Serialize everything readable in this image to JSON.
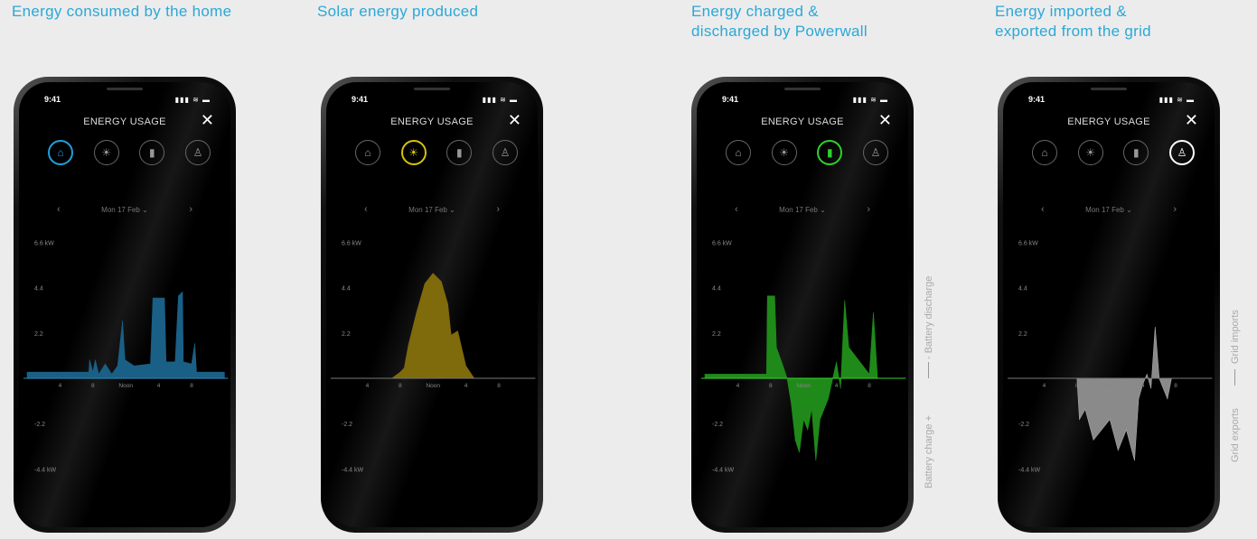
{
  "captions": [
    "Energy consumed by the home",
    "Solar energy produced",
    "Energy charged &\ndischarged by Powerwall",
    "Energy imported &\nexported from the grid"
  ],
  "app": {
    "time": "9:41",
    "title": "ENERGY USAGE",
    "date": "Mon 17 Feb",
    "icons": [
      "home-icon",
      "solar-icon",
      "powerwall-icon",
      "grid-icon"
    ]
  },
  "axis": {
    "y_ticks": [
      "6.6 kW",
      "4.4",
      "2.2",
      "-2.2",
      "-4.4 kW"
    ],
    "x_ticks": [
      "4",
      "8",
      "Noon",
      "4",
      "8"
    ]
  },
  "side_labels": {
    "powerwall_top": "- Battery discharge",
    "powerwall_bottom": "Battery charge +",
    "grid_top": "Grid imports",
    "grid_bottom": "Grid exports"
  },
  "colors": {
    "home": "#1a5f86",
    "solar": "#7f6a0c",
    "powerwall": "#1f8a1a",
    "grid": "#8a8a8a",
    "caption": "#2ba8d6"
  },
  "chart_data": [
    {
      "type": "area",
      "name": "home",
      "active_icon": 0,
      "ylim": [
        -5.5,
        6.6
      ],
      "x_unit": "hour",
      "points": [
        [
          0,
          0.3
        ],
        [
          7.5,
          0.3
        ],
        [
          7.6,
          0.9
        ],
        [
          8,
          0.3
        ],
        [
          8.3,
          0.9
        ],
        [
          8.7,
          0.2
        ],
        [
          9.5,
          0.7
        ],
        [
          10.3,
          0.2
        ],
        [
          11,
          0.6
        ],
        [
          11.6,
          2.8
        ],
        [
          11.9,
          0.9
        ],
        [
          13,
          0.6
        ],
        [
          15,
          0.7
        ],
        [
          15.3,
          3.9
        ],
        [
          16.7,
          3.9
        ],
        [
          16.9,
          0.8
        ],
        [
          18,
          0.8
        ],
        [
          18.4,
          4.0
        ],
        [
          18.9,
          4.2
        ],
        [
          19,
          0.8
        ],
        [
          20,
          0.7
        ],
        [
          20.4,
          1.7
        ],
        [
          20.6,
          0.3
        ],
        [
          24,
          0.3
        ]
      ]
    },
    {
      "type": "area",
      "name": "solar",
      "active_icon": 1,
      "ylim": [
        -5.5,
        6.6
      ],
      "x_unit": "hour",
      "points": [
        [
          7,
          0
        ],
        [
          8,
          0.3
        ],
        [
          8.5,
          0.5
        ],
        [
          9,
          1.6
        ],
        [
          10,
          3.2
        ],
        [
          11,
          4.6
        ],
        [
          12,
          5.1
        ],
        [
          13,
          4.7
        ],
        [
          13.8,
          3.6
        ],
        [
          14.2,
          2.1
        ],
        [
          15,
          2.3
        ],
        [
          16,
          0.6
        ],
        [
          17,
          0
        ]
      ]
    },
    {
      "type": "area",
      "name": "powerwall",
      "active_icon": 2,
      "ylim": [
        -5.5,
        6.6
      ],
      "x_unit": "hour",
      "points": [
        [
          0,
          0.2
        ],
        [
          7.5,
          0.2
        ],
        [
          7.6,
          4.0
        ],
        [
          8.5,
          4.0
        ],
        [
          8.7,
          1.5
        ],
        [
          9.5,
          0.6
        ],
        [
          10,
          0
        ],
        [
          10.5,
          -1.2
        ],
        [
          11,
          -3
        ],
        [
          11.5,
          -3.6
        ],
        [
          12,
          -2
        ],
        [
          12.5,
          -2.5
        ],
        [
          13,
          -1.5
        ],
        [
          13.5,
          -4
        ],
        [
          14,
          -2
        ],
        [
          15,
          -1
        ],
        [
          16,
          0.8
        ],
        [
          16.5,
          -0.5
        ],
        [
          17,
          3.8
        ],
        [
          17.5,
          1.5
        ],
        [
          20,
          0.2
        ],
        [
          20.5,
          3.2
        ],
        [
          21,
          0
        ]
      ]
    },
    {
      "type": "area",
      "name": "grid",
      "active_icon": 3,
      "ylim": [
        -5.5,
        6.6
      ],
      "x_unit": "hour",
      "points": [
        [
          0,
          0
        ],
        [
          8,
          0
        ],
        [
          8.3,
          -2
        ],
        [
          9,
          -1.5
        ],
        [
          10,
          -3
        ],
        [
          11,
          -2.5
        ],
        [
          12,
          -2
        ],
        [
          13,
          -3.5
        ],
        [
          14,
          -2.5
        ],
        [
          15,
          -4
        ],
        [
          15.5,
          -1
        ],
        [
          16,
          -0.3
        ],
        [
          16.5,
          0.2
        ],
        [
          17,
          -0.5
        ],
        [
          17.5,
          2.5
        ],
        [
          18,
          0
        ],
        [
          19,
          -1
        ],
        [
          19.5,
          0
        ],
        [
          24,
          0
        ]
      ]
    }
  ]
}
